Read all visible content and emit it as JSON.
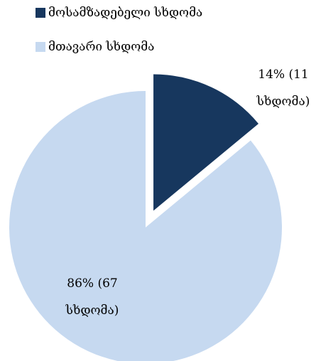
{
  "chart_data": {
    "type": "pie",
    "categories": [
      "მოსამზადებელი სხდომა",
      "მთავარი სხდომა"
    ],
    "values": [
      14,
      86
    ],
    "value_labels": [
      "14% (11 სხდომა)",
      "86% (67 სხდომა)"
    ],
    "colors": [
      "#17375e",
      "#c6d9f0"
    ],
    "exploded": [
      true,
      false
    ],
    "legend": "top"
  }
}
